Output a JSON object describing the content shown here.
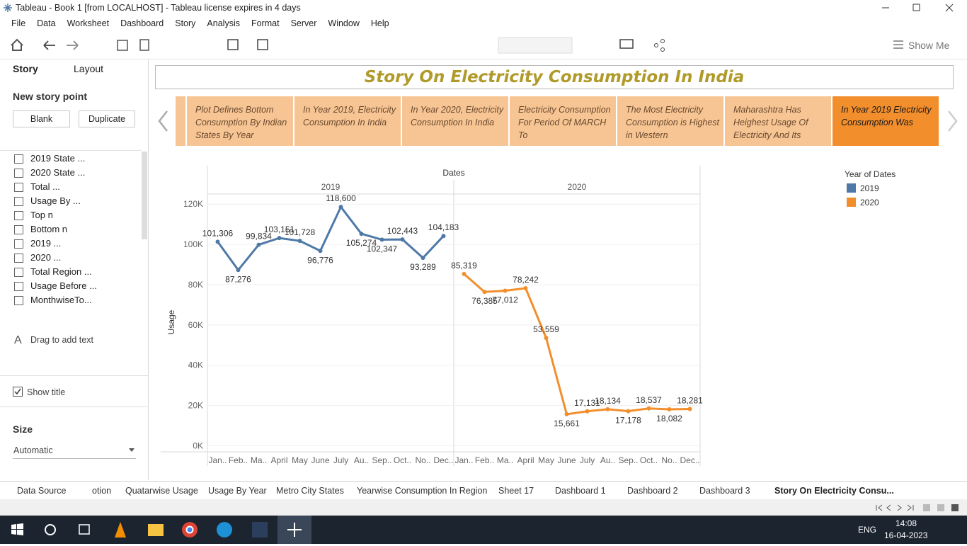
{
  "window_title": "Tableau - Book 1 [from LOCALHOST] - Tableau license expires in 4 days",
  "menu": [
    "File",
    "Data",
    "Worksheet",
    "Dashboard",
    "Story",
    "Analysis",
    "Format",
    "Server",
    "Window",
    "Help"
  ],
  "toolbar": {
    "show_me": "Show Me"
  },
  "sidebar": {
    "tabs": [
      "Story",
      "Layout"
    ],
    "new_story_point": "New story point",
    "buttons": [
      "Blank",
      "Duplicate"
    ],
    "sheets": [
      "2019 State ...",
      "2020 State ...",
      "Total ...",
      "Usage By ...",
      "Top n",
      "Bottom n",
      "2019 ...",
      "2020 ...",
      "Total Region ...",
      "Usage Before ...",
      "MonthwiseTo..."
    ],
    "drag_text": "Drag to add text",
    "show_title": "Show title",
    "size_label": "Size",
    "size_value": "Automatic"
  },
  "story": {
    "title": "Story On Electricity Consumption In India",
    "points": [
      "Plot Defines Bottom Consumption By Indian States By Year",
      "In Year 2019, Electricity Consumption In India",
      "In Year 2020, Electricity Consumption In India",
      "Electricity Consumption For Period Of MARCH To",
      "The Most Electricity Consumption is Highest in Western",
      "Maharashtra Has Heighest Usage Of Electricity And Its",
      "In Year 2019 Electricity Consumption Was"
    ],
    "selected": 6
  },
  "chart_data": {
    "type": "line",
    "x_title": "Dates",
    "y_title": "Usage",
    "column_headers": [
      "2019",
      "2020"
    ],
    "categories": [
      "Jan..",
      "Feb..",
      "Ma..",
      "April",
      "May",
      "June",
      "July",
      "Au..",
      "Sep..",
      "Oct..",
      "No..",
      "Dec.."
    ],
    "legend_title": "Year of Dates",
    "grid": true,
    "ylim": [
      -3000,
      125000
    ],
    "yticks": [
      {
        "value": 0,
        "label": "0K"
      },
      {
        "value": 20000,
        "label": "20K"
      },
      {
        "value": 40000,
        "label": "40K"
      },
      {
        "value": 60000,
        "label": "60K"
      },
      {
        "value": 80000,
        "label": "80K"
      },
      {
        "value": 100000,
        "label": "100K"
      },
      {
        "value": 120000,
        "label": "120K"
      }
    ],
    "series": [
      {
        "name": "2019",
        "color": "#4e79a7",
        "values": [
          101306,
          87276,
          99834,
          103151,
          101728,
          96776,
          118600,
          105274,
          102347,
          102443,
          93289,
          104183
        ],
        "value_labels": [
          "101,306",
          "87,276",
          "99,834",
          "103,151",
          "101,728",
          "96,776",
          "118,600",
          "105,274",
          "102,347",
          "102,443",
          "93,289",
          "104,183"
        ]
      },
      {
        "name": "2020",
        "color": "#f28e2b",
        "values": [
          85319,
          76385,
          77012,
          78242,
          53559,
          15661,
          17131,
          18134,
          17178,
          18537,
          18082,
          18281
        ],
        "value_labels": [
          "85,319",
          "76,385",
          "77,012",
          "78,242",
          "53,559",
          "15,661",
          "17,131",
          "18,134",
          "17,178",
          "18,537",
          "18,082",
          "18,281"
        ]
      }
    ]
  },
  "tabs": [
    "Data Source",
    "otion",
    "Quatarwise Usage",
    "Usage By Year",
    "Metro City States",
    "Yearwise Consumption In Region",
    "Sheet 17",
    "Dashboard 1",
    "Dashboard 2",
    "Dashboard 3",
    "Story On Electricity Consu..."
  ],
  "taskbar": {
    "language": "ENG",
    "time": "14:08",
    "date": "16-04-2023"
  }
}
